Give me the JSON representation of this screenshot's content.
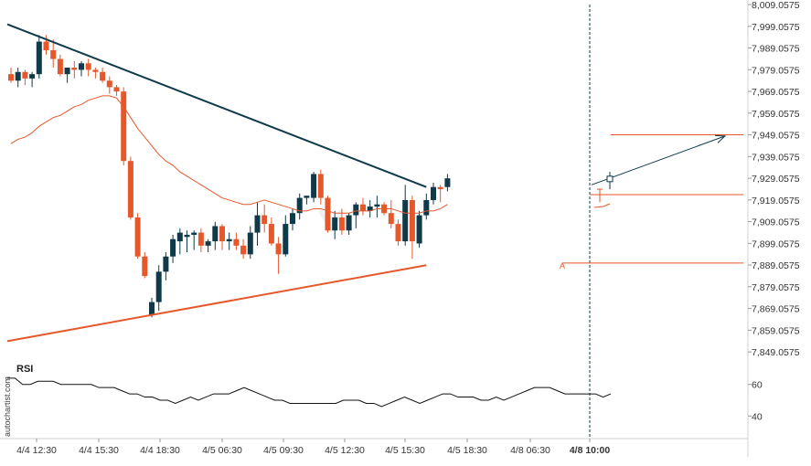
{
  "watermark": "autochartist.com",
  "colors": {
    "bull": "#0e3a4a",
    "bear": "#e5582b",
    "resistance": "#0e3a4a",
    "support": "#e5582b",
    "ma": "#e5582b",
    "rsi": "#111111",
    "grid": "#e6e6e6",
    "axis_text": "#333333"
  },
  "chart_data": [
    {
      "type": "candlestick",
      "y_tick_labels": [
        "8,009.0575",
        "7,999.0575",
        "7,989.0575",
        "7,979.0575",
        "7,969.0575",
        "7,959.0575",
        "7,949.0575",
        "7,939.0575",
        "7,929.0575",
        "7,919.0575",
        "7,909.0575",
        "7,899.0575",
        "7,889.0575",
        "7,879.0575",
        "7,869.0575",
        "7,859.0575",
        "7,849.0575"
      ],
      "ylim": [
        7844.0575,
        8009.0575
      ],
      "x_tick_labels": [
        "4/4 12:30",
        "4/4 15:30",
        "4/4 18:30",
        "4/5 06:30",
        "4/5 09:30",
        "4/5 12:30",
        "4/5 15:30",
        "4/5 18:30",
        "4/8 06:30",
        "4/8 10:00"
      ],
      "highlight_x_label": "4/8 10:00",
      "candles": [
        {
          "o": 7977,
          "h": 7980,
          "l": 7973,
          "c": 7974
        },
        {
          "o": 7974,
          "h": 7980,
          "l": 7971,
          "c": 7978
        },
        {
          "o": 7978,
          "h": 7979,
          "l": 7972,
          "c": 7975
        },
        {
          "o": 7975,
          "h": 7978,
          "l": 7971,
          "c": 7977
        },
        {
          "o": 7977,
          "h": 7995,
          "l": 7975,
          "c": 7992
        },
        {
          "o": 7992,
          "h": 7995,
          "l": 7986,
          "c": 7988
        },
        {
          "o": 7988,
          "h": 7993,
          "l": 7980,
          "c": 7984
        },
        {
          "o": 7984,
          "h": 7986,
          "l": 7976,
          "c": 7977
        },
        {
          "o": 7977,
          "h": 7980,
          "l": 7973,
          "c": 7980
        },
        {
          "o": 7980,
          "h": 7983,
          "l": 7975,
          "c": 7979
        },
        {
          "o": 7979,
          "h": 7983,
          "l": 7976,
          "c": 7982
        },
        {
          "o": 7982,
          "h": 7984,
          "l": 7976,
          "c": 7979
        },
        {
          "o": 7979,
          "h": 7980,
          "l": 7975,
          "c": 7978
        },
        {
          "o": 7978,
          "h": 7980,
          "l": 7973,
          "c": 7974
        },
        {
          "o": 7974,
          "h": 7976,
          "l": 7968,
          "c": 7971
        },
        {
          "o": 7971,
          "h": 7972,
          "l": 7967,
          "c": 7969
        },
        {
          "o": 7969,
          "h": 7971,
          "l": 7935,
          "c": 7937
        },
        {
          "o": 7937,
          "h": 7939,
          "l": 7910,
          "c": 7911
        },
        {
          "o": 7911,
          "h": 7913,
          "l": 7892,
          "c": 7893
        },
        {
          "o": 7893,
          "h": 7895,
          "l": 7883,
          "c": 7884
        },
        {
          "o": 7866,
          "h": 7874,
          "l": 7865,
          "c": 7872
        },
        {
          "o": 7872,
          "h": 7889,
          "l": 7868,
          "c": 7886
        },
        {
          "o": 7886,
          "h": 7895,
          "l": 7882,
          "c": 7893
        },
        {
          "o": 7893,
          "h": 7903,
          "l": 7890,
          "c": 7901
        },
        {
          "o": 7900,
          "h": 7906,
          "l": 7894,
          "c": 7904
        },
        {
          "o": 7902,
          "h": 7905,
          "l": 7895,
          "c": 7903
        },
        {
          "o": 7903,
          "h": 7905,
          "l": 7896,
          "c": 7904
        },
        {
          "o": 7904,
          "h": 7906,
          "l": 7895,
          "c": 7898
        },
        {
          "o": 7898,
          "h": 7901,
          "l": 7895,
          "c": 7900
        },
        {
          "o": 7900,
          "h": 7909,
          "l": 7896,
          "c": 7907
        },
        {
          "o": 7907,
          "h": 7908,
          "l": 7896,
          "c": 7900
        },
        {
          "o": 7900,
          "h": 7904,
          "l": 7896,
          "c": 7901
        },
        {
          "o": 7901,
          "h": 7904,
          "l": 7896,
          "c": 7898
        },
        {
          "o": 7898,
          "h": 7901,
          "l": 7892,
          "c": 7894
        },
        {
          "o": 7894,
          "h": 7907,
          "l": 7892,
          "c": 7904
        },
        {
          "o": 7904,
          "h": 7918,
          "l": 7898,
          "c": 7912
        },
        {
          "o": 7912,
          "h": 7917,
          "l": 7904,
          "c": 7908
        },
        {
          "o": 7908,
          "h": 7911,
          "l": 7898,
          "c": 7899
        },
        {
          "o": 7899,
          "h": 7902,
          "l": 7885,
          "c": 7894
        },
        {
          "o": 7894,
          "h": 7912,
          "l": 7893,
          "c": 7908
        },
        {
          "o": 7908,
          "h": 7915,
          "l": 7905,
          "c": 7913
        },
        {
          "o": 7913,
          "h": 7922,
          "l": 7910,
          "c": 7920
        },
        {
          "o": 7920,
          "h": 7921,
          "l": 7917,
          "c": 7921
        },
        {
          "o": 7920,
          "h": 7932,
          "l": 7918,
          "c": 7931
        },
        {
          "o": 7931,
          "h": 7933,
          "l": 7917,
          "c": 7920
        },
        {
          "o": 7920,
          "h": 7921,
          "l": 7904,
          "c": 7905
        },
        {
          "o": 7905,
          "h": 7914,
          "l": 7901,
          "c": 7911
        },
        {
          "o": 7911,
          "h": 7915,
          "l": 7903,
          "c": 7905
        },
        {
          "o": 7905,
          "h": 7913,
          "l": 7903,
          "c": 7912
        },
        {
          "o": 7912,
          "h": 7918,
          "l": 7906,
          "c": 7917
        },
        {
          "o": 7917,
          "h": 7920,
          "l": 7912,
          "c": 7914
        },
        {
          "o": 7914,
          "h": 7919,
          "l": 7911,
          "c": 7916
        },
        {
          "o": 7916,
          "h": 7921,
          "l": 7911,
          "c": 7917
        },
        {
          "o": 7917,
          "h": 7918,
          "l": 7912,
          "c": 7913
        },
        {
          "o": 7913,
          "h": 7919,
          "l": 7906,
          "c": 7908
        },
        {
          "o": 7908,
          "h": 7910,
          "l": 7898,
          "c": 7900
        },
        {
          "o": 7900,
          "h": 7926,
          "l": 7898,
          "c": 7919
        },
        {
          "o": 7919,
          "h": 7921,
          "l": 7892,
          "c": 7900
        },
        {
          "o": 7899,
          "h": 7914,
          "l": 7897,
          "c": 7912
        },
        {
          "o": 7912,
          "h": 7922,
          "l": 7910,
          "c": 7919
        },
        {
          "o": 7919,
          "h": 7927,
          "l": 7917,
          "c": 7925
        },
        {
          "o": 7925,
          "h": 7926,
          "l": 7918,
          "c": 7924
        },
        {
          "o": 7925,
          "h": 7931,
          "l": 7923,
          "c": 7929
        }
      ],
      "moving_average": [
        7945,
        7947,
        7948,
        7950,
        7953,
        7955,
        7957,
        7958,
        7960,
        7962,
        7963,
        7965,
        7966,
        7967,
        7967,
        7966,
        7962,
        7957,
        7952,
        7948,
        7944,
        7940,
        7937,
        7935,
        7932,
        7930,
        7928,
        7926,
        7924,
        7922,
        7920,
        7919,
        7918,
        7917,
        7917,
        7918,
        7919,
        7918,
        7917,
        7916,
        7915,
        7914,
        7914,
        7915,
        7915,
        7914,
        7913,
        7913,
        7913,
        7914,
        7914,
        7914,
        7915,
        7915,
        7915,
        7914,
        7913,
        7913,
        7913,
        7914,
        7914,
        7915,
        7917
      ],
      "resistance_line": {
        "start": [
          0,
          8000
        ],
        "end": [
          59,
          7925
        ]
      },
      "support_line": {
        "start": [
          0,
          7854
        ],
        "end": [
          59,
          7889
        ]
      },
      "levels": [
        7949.0575,
        7921.5,
        7890
      ],
      "forecast_arrow": {
        "from": [
          59.5,
          7926
        ],
        "to": [
          72,
          7948.5
        ]
      },
      "annotation": "A"
    },
    {
      "type": "line",
      "title": "RSI",
      "y_tick_labels": [
        "60",
        "40"
      ],
      "ylim": [
        28,
        72
      ],
      "values": [
        64,
        64,
        60,
        60,
        62,
        62,
        62,
        60,
        60,
        60,
        60,
        60,
        58,
        58,
        58,
        56,
        54,
        54,
        52,
        52,
        50,
        50,
        48,
        50,
        52,
        50,
        52,
        54,
        54,
        54,
        56,
        58,
        56,
        54,
        52,
        50,
        50,
        48,
        48,
        48,
        48,
        48,
        48,
        48,
        50,
        50,
        50,
        48,
        48,
        46,
        48,
        50,
        52,
        50,
        48,
        50,
        52,
        54,
        54,
        52,
        52,
        52,
        50,
        50,
        52,
        50,
        52,
        54,
        56,
        58,
        58,
        58,
        56,
        54,
        54,
        54,
        54,
        54,
        52,
        54
      ]
    }
  ]
}
